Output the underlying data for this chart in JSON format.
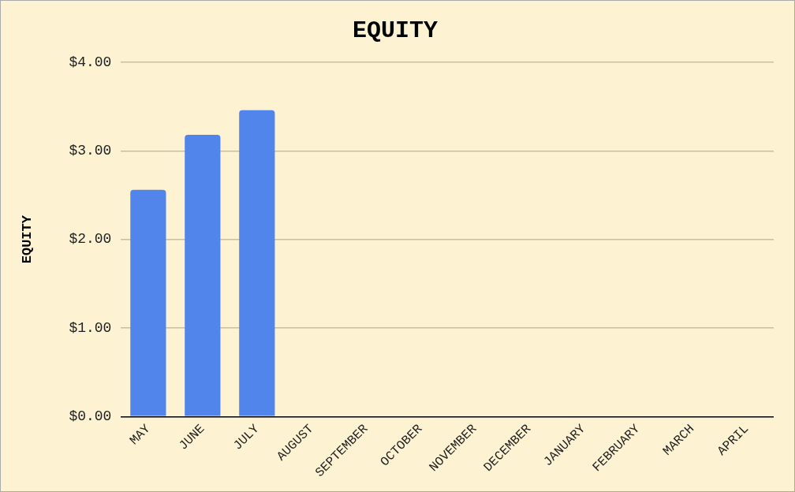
{
  "chart_data": {
    "type": "bar",
    "title": "EQUITY",
    "ylabel": "EQUITY",
    "categories": [
      "MAY",
      "JUNE",
      "JULY",
      "AUGUST",
      "SEPTEMBER",
      "OCTOBER",
      "NOVEMBER",
      "DECEMBER",
      "JANUARY",
      "FEBRUARY",
      "MARCH",
      "APRIL"
    ],
    "values": [
      2.56,
      3.18,
      3.46,
      null,
      null,
      null,
      null,
      null,
      null,
      null,
      null,
      null
    ],
    "color": "#5285ec",
    "ylim": [
      0,
      4
    ],
    "yticks": [
      {
        "value": 0,
        "label": "$0.00"
      },
      {
        "value": 1,
        "label": "$1.00"
      },
      {
        "value": 2,
        "label": "$2.00"
      },
      {
        "value": 3,
        "label": "$3.00"
      },
      {
        "value": 4,
        "label": "$4.00"
      }
    ],
    "grid": "y",
    "legend": false
  }
}
